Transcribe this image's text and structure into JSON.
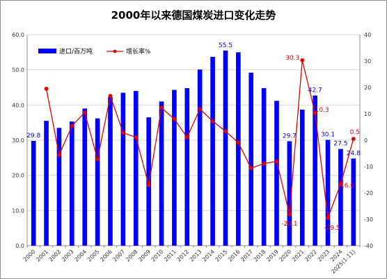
{
  "chart_data": {
    "type": "bar+line",
    "title": "2000年以来德国煤炭进口变化走势",
    "categories": [
      "2000",
      "2001",
      "2002",
      "2003",
      "2004",
      "2005",
      "2006",
      "2007",
      "2008",
      "2009",
      "2010",
      "2011",
      "2012",
      "2013",
      "2014",
      "2015",
      "2016",
      "2017",
      "2018",
      "2019",
      "2020",
      "2021",
      "2022",
      "2023",
      "2024",
      "2025(1-11)"
    ],
    "series": [
      {
        "name": "进口/百万吨",
        "type": "bar",
        "axis": "left",
        "color": "#0000ff",
        "values": [
          29.8,
          35.5,
          33.5,
          35.3,
          39.0,
          36.2,
          42.3,
          43.5,
          44.0,
          36.5,
          41.0,
          44.3,
          44.8,
          50.1,
          53.7,
          55.5,
          55.0,
          49.2,
          44.8,
          41.2,
          29.7,
          38.7,
          42.7,
          30.1,
          27.5,
          24.8
        ]
      },
      {
        "name": "增长率%",
        "type": "line",
        "axis": "right",
        "color": "#e00000",
        "values": [
          null,
          19.5,
          -5.6,
          5.4,
          10.5,
          -7.2,
          16.8,
          2.8,
          1.1,
          -17.0,
          12.3,
          8.0,
          1.1,
          11.8,
          7.2,
          3.4,
          -0.9,
          -10.6,
          -8.9,
          -8.0,
          -28.1,
          30.3,
          10.3,
          -29.5,
          -16.6,
          0.5
        ]
      }
    ],
    "y_left": {
      "min": 0,
      "max": 60,
      "step": 10,
      "decimals": 1
    },
    "y_right": {
      "min": -40,
      "max": 40,
      "step": 10,
      "decimals": 0
    },
    "bar_labels": [
      {
        "index": 0,
        "text": "29.8"
      },
      {
        "index": 15,
        "text": "55.5"
      },
      {
        "index": 20,
        "text": "29.7"
      },
      {
        "index": 22,
        "text": "42.7"
      },
      {
        "index": 23,
        "text": "30.1"
      },
      {
        "index": 24,
        "text": "27.5"
      },
      {
        "index": 25,
        "text": "24.8"
      }
    ],
    "line_labels": [
      {
        "index": 20,
        "text": "-28.1"
      },
      {
        "index": 21,
        "text": "30.3"
      },
      {
        "index": 22,
        "text": "10.3"
      },
      {
        "index": 23,
        "text": "-29.5"
      },
      {
        "index": 24,
        "text": "-16.6"
      },
      {
        "index": 25,
        "text": "0.5"
      }
    ],
    "legend": {
      "position": "top-left"
    },
    "grid": true,
    "bar_label_color": "#0000cc",
    "line_label_color": "#e00000"
  }
}
